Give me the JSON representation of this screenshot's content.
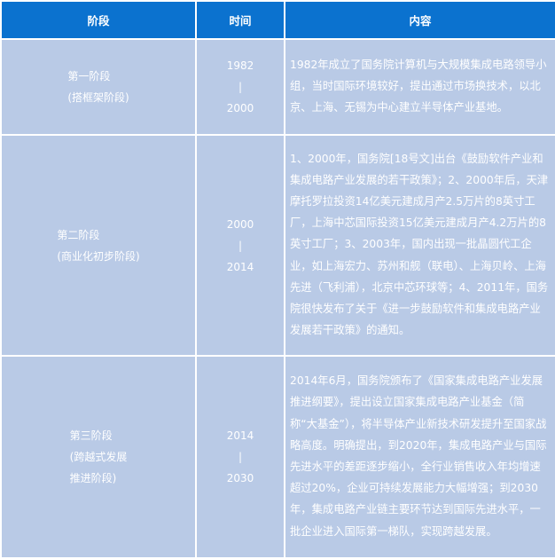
{
  "table": {
    "headers": [
      "阶段",
      "时间",
      "内容"
    ],
    "colors": {
      "header_bg": "#0b72cf",
      "cell_bg": "#b9cae6",
      "text": "#ffffff"
    },
    "rows": [
      {
        "stage_lines": [
          "第一阶段",
          "(搭框架阶段)"
        ],
        "time": {
          "start": "1982",
          "sep": "|",
          "end": "2000"
        },
        "content": "1982年成立了国务院计算机与大规模集成电路领导小组，当时国际环境较好，提出通过市场换技术，以北京、上海、无锡为中心建立半导体产业基地。"
      },
      {
        "stage_lines": [
          "第二阶段",
          "(商业化初步阶段)"
        ],
        "time": {
          "start": "2000",
          "sep": "|",
          "end": "2014"
        },
        "content": "1、2000年，国务院[18号文]出台《鼓励软件产业和集成电路产业发展的若干政策》；2、2000年后，天津摩托罗拉投资14亿美元建成月产2.5万片的8英寸工厂，上海中芯国际投资15亿美元建成月产4.2万片的8英寸工厂；3、2003年，国内出现一批晶圆代工企业，如上海宏力、苏州和舰（联电）、上海贝岭、上海先进（飞利浦），北京中芯环球等；4、2011年，国务院很快发布了关于《进一步鼓励软件和集成电路产业发展若干政策》的通知。"
      },
      {
        "stage_lines": [
          "第三阶段",
          "(跨越式发展",
          "推进阶段)"
        ],
        "time": {
          "start": "2014",
          "sep": "|",
          "end": "2030"
        },
        "content": "2014年6月，国务院颁布了《国家集成电路产业发展推进纲要》，提出设立国家集成电路产业基金（简称“大基金”），将半导体产业新技术研发提升至国家战略高度。明确提出，到2020年，集成电路产业与国际先进水平的差距逐步缩小，全行业销售收入年均增速超过20%，企业可持续发展能力大幅增强；到2030年，集成电路产业链主要环节达到国际先进水平，一批企业进入国际第一梯队，实现跨越发展。"
      }
    ]
  }
}
